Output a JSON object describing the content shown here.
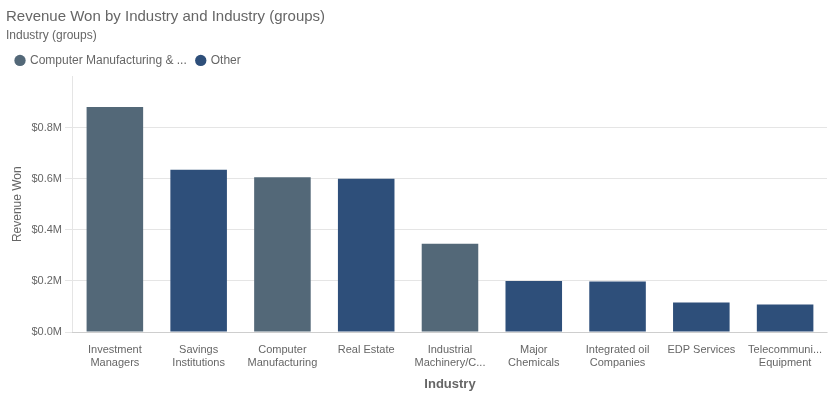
{
  "chart_data": {
    "type": "bar",
    "title": "Revenue Won by Industry and Industry (groups)",
    "xlabel": "Industry",
    "ylabel": "Revenue Won",
    "legend_title": "Industry (groups)",
    "categories": [
      "Investment\nManagers",
      "Savings\nInstitutions",
      "Computer\nManufacturing",
      "Real Estate",
      "Industrial\nMachinery/C...",
      "Major\nChemicals",
      "Integrated oil\nCompanies",
      "EDP Services",
      "Telecommuni...\nEquipment"
    ],
    "series": [
      {
        "name": "Computer Manufacturing & ...",
        "color": "#536878",
        "values": [
          0.88,
          null,
          0.605,
          null,
          0.345,
          null,
          null,
          null,
          null
        ]
      },
      {
        "name": "Other",
        "color": "#2e4f7a",
        "values": [
          null,
          0.635,
          null,
          0.6,
          null,
          0.2,
          0.198,
          0.115,
          0.108
        ]
      }
    ],
    "ylim": [
      0,
      1.0
    ],
    "yticks": [
      {
        "value": 0.0,
        "label": "$0.0M"
      },
      {
        "value": 0.2,
        "label": "$0.2M"
      },
      {
        "value": 0.4,
        "label": "$0.4M"
      },
      {
        "value": 0.6,
        "label": "$0.6M"
      },
      {
        "value": 0.8,
        "label": "$0.8M"
      }
    ],
    "grid": true,
    "legend": "upper left"
  }
}
